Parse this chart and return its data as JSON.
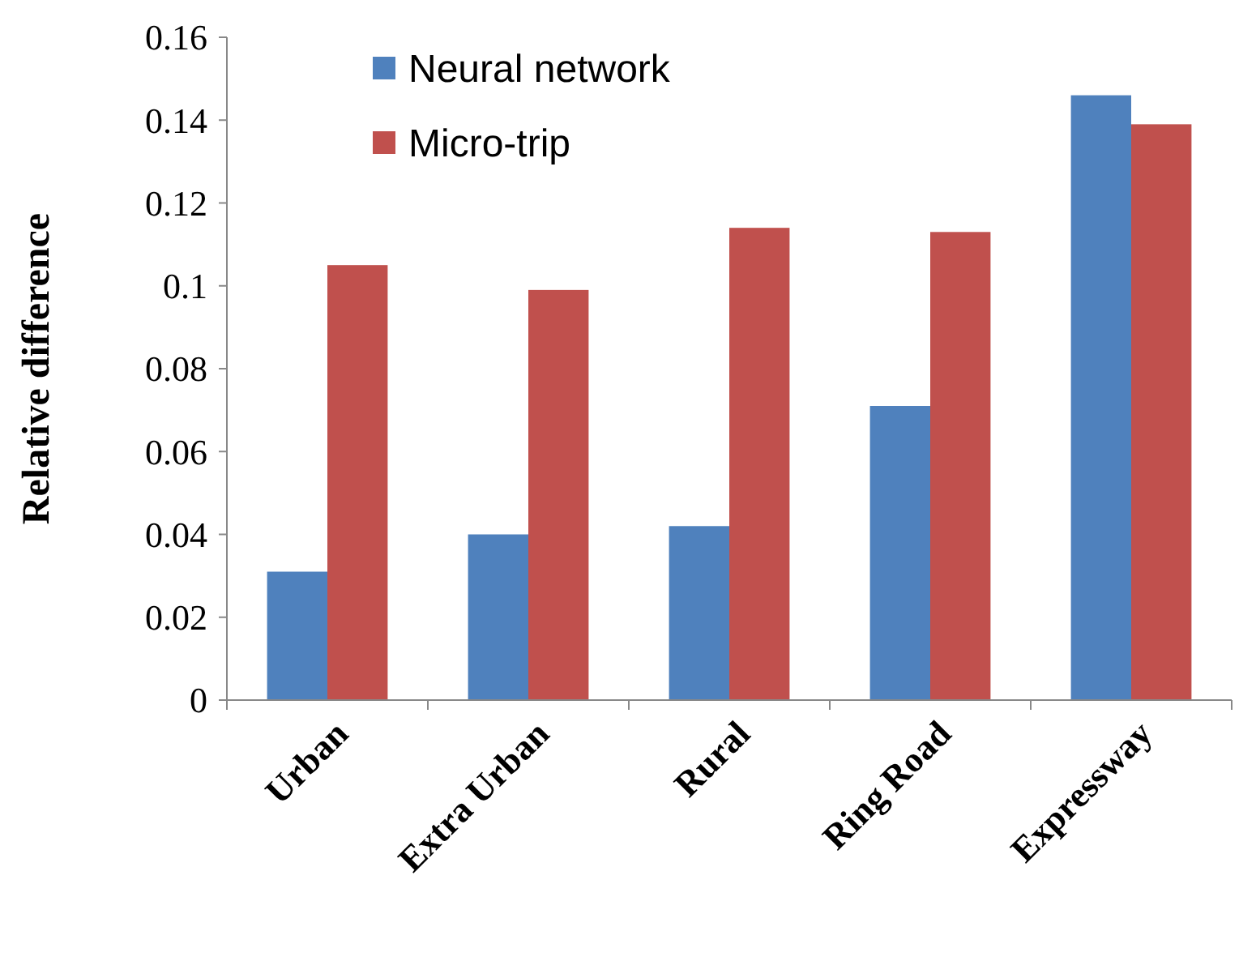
{
  "chart_data": {
    "type": "bar",
    "ylabel": "Relative difference",
    "categories": [
      "Urban",
      "Extra Urban",
      "Rural",
      "Ring Road",
      "Expressway"
    ],
    "series": [
      {
        "name": "Neural network",
        "color": "#4f81bd",
        "values": [
          0.031,
          0.04,
          0.042,
          0.071,
          0.146
        ]
      },
      {
        "name": "Micro-trip",
        "color": "#c0504d",
        "values": [
          0.105,
          0.099,
          0.114,
          0.113,
          0.139
        ]
      }
    ],
    "ylim": [
      0,
      0.16
    ],
    "yticks": [
      0,
      0.02,
      0.04,
      0.06,
      0.08,
      {
        "value": 0.1,
        "label": "0.1"
      },
      0.12,
      0.14,
      0.16
    ],
    "grid": false,
    "legend": "top"
  }
}
